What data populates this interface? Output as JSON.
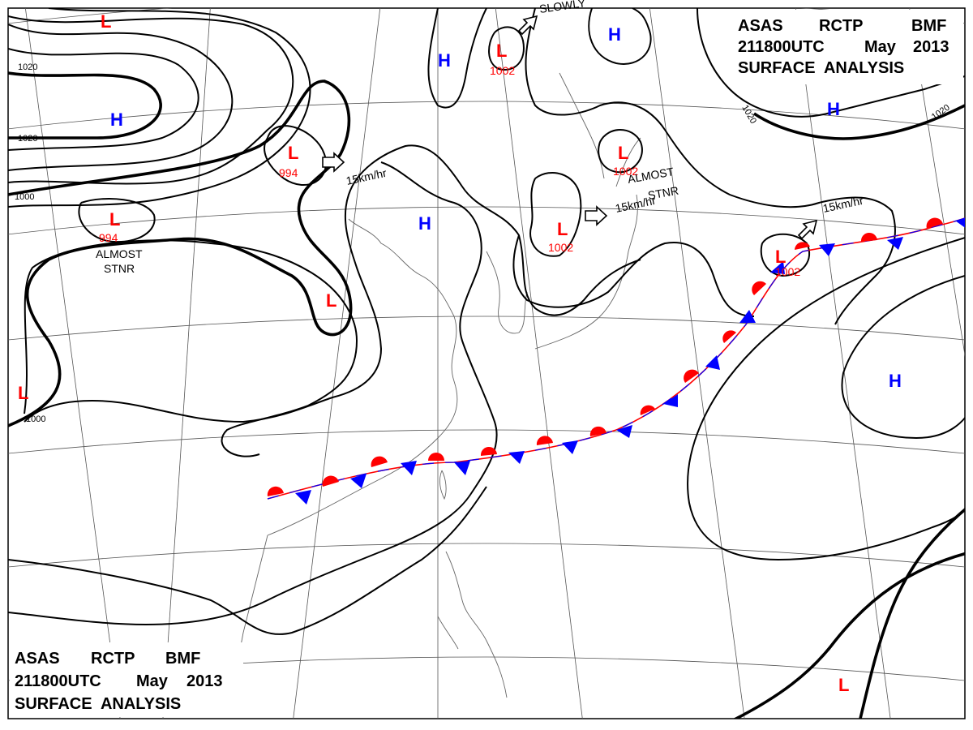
{
  "header_top": {
    "line1": [
      "ASAS",
      "RCTP",
      "BMF"
    ],
    "line2": [
      "211800UTC",
      "May",
      "2013"
    ],
    "line3": "SURFACE  ANALYSIS"
  },
  "header_bottom": {
    "line1": [
      "ASAS",
      "RCTP",
      "BMF"
    ],
    "line2": [
      "211800UTC",
      "May",
      "2013"
    ],
    "line3": "SURFACE  ANALYSIS"
  },
  "isobar_labels": [
    "1020",
    "1020",
    "1000",
    "1000",
    "1020",
    "1020"
  ],
  "lows": [
    {
      "symbol": "L",
      "value": ""
    },
    {
      "symbol": "L",
      "value": "994"
    },
    {
      "symbol": "L",
      "value": "994"
    },
    {
      "symbol": "L",
      "value": ""
    },
    {
      "symbol": "L",
      "value": "1002"
    },
    {
      "symbol": "L",
      "value": "1002"
    },
    {
      "symbol": "L",
      "value": "1002"
    },
    {
      "symbol": "L",
      "value": "1002"
    },
    {
      "symbol": "L",
      "value": ""
    },
    {
      "symbol": "L",
      "value": ""
    }
  ],
  "highs": [
    {
      "symbol": "H"
    },
    {
      "symbol": "H"
    },
    {
      "symbol": "H"
    },
    {
      "symbol": "H"
    },
    {
      "symbol": "H"
    },
    {
      "symbol": "H"
    }
  ],
  "motion_notes": [
    "15km/hr",
    "15km/hr",
    "15km/hr",
    "SLOWLY"
  ],
  "stationary_notes": [
    {
      "l1": "ALMOST",
      "l2": "STNR"
    },
    {
      "l1": "ALMOST",
      "l2": "STNR"
    }
  ],
  "colors": {
    "low": "#ff0000",
    "high": "#0000ff",
    "warm_front": "#ff0000",
    "cold_front": "#0000ff"
  }
}
